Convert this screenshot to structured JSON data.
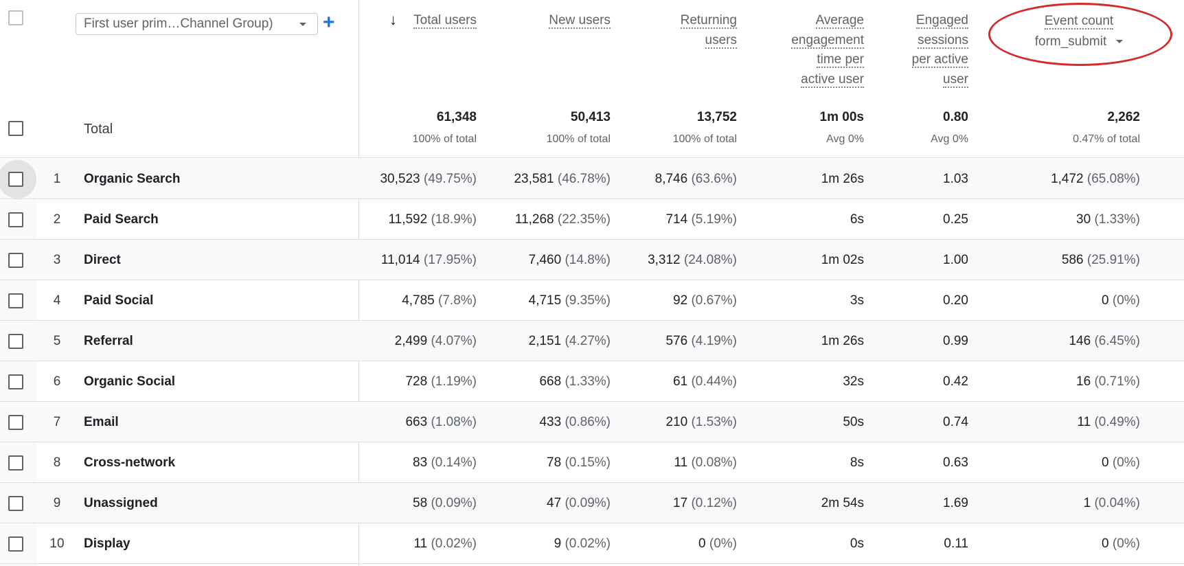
{
  "dimension": {
    "label": "First user prim…Channel Group)"
  },
  "add_dimension_label": "+",
  "sort_arrow": "↓",
  "columns": [
    {
      "id": "total_users",
      "lines": [
        "Total users"
      ]
    },
    {
      "id": "new_users",
      "lines": [
        "New users"
      ]
    },
    {
      "id": "returning_users",
      "lines": [
        "Returning",
        "users"
      ]
    },
    {
      "id": "avg_engagement",
      "lines": [
        "Average",
        "engagement",
        "time per",
        "active user"
      ]
    },
    {
      "id": "engaged_sessions",
      "lines": [
        "Engaged",
        "sessions",
        "per active",
        "user"
      ]
    },
    {
      "id": "event_count",
      "lines": [
        "Event count"
      ],
      "selected_event": "form_submit"
    }
  ],
  "totals": {
    "label": "Total",
    "values": [
      "61,348",
      "50,413",
      "13,752",
      "1m 00s",
      "0.80",
      "2,262"
    ],
    "subs": [
      "100% of total",
      "100% of total",
      "100% of total",
      "Avg 0%",
      "Avg 0%",
      "0.47% of total"
    ]
  },
  "rows": [
    {
      "num": "1",
      "name": "Organic Search",
      "cells": [
        [
          "30,523",
          "(49.75%)"
        ],
        [
          "23,581",
          "(46.78%)"
        ],
        [
          "8,746",
          "(63.6%)"
        ],
        [
          "1m 26s",
          ""
        ],
        [
          "1.03",
          ""
        ],
        [
          "1,472",
          "(65.08%)"
        ]
      ]
    },
    {
      "num": "2",
      "name": "Paid Search",
      "cells": [
        [
          "11,592",
          "(18.9%)"
        ],
        [
          "11,268",
          "(22.35%)"
        ],
        [
          "714",
          "(5.19%)"
        ],
        [
          "6s",
          ""
        ],
        [
          "0.25",
          ""
        ],
        [
          "30",
          "(1.33%)"
        ]
      ]
    },
    {
      "num": "3",
      "name": "Direct",
      "cells": [
        [
          "11,014",
          "(17.95%)"
        ],
        [
          "7,460",
          "(14.8%)"
        ],
        [
          "3,312",
          "(24.08%)"
        ],
        [
          "1m 02s",
          ""
        ],
        [
          "1.00",
          ""
        ],
        [
          "586",
          "(25.91%)"
        ]
      ]
    },
    {
      "num": "4",
      "name": "Paid Social",
      "cells": [
        [
          "4,785",
          "(7.8%)"
        ],
        [
          "4,715",
          "(9.35%)"
        ],
        [
          "92",
          "(0.67%)"
        ],
        [
          "3s",
          ""
        ],
        [
          "0.20",
          ""
        ],
        [
          "0",
          "(0%)"
        ]
      ]
    },
    {
      "num": "5",
      "name": "Referral",
      "cells": [
        [
          "2,499",
          "(4.07%)"
        ],
        [
          "2,151",
          "(4.27%)"
        ],
        [
          "576",
          "(4.19%)"
        ],
        [
          "1m 26s",
          ""
        ],
        [
          "0.99",
          ""
        ],
        [
          "146",
          "(6.45%)"
        ]
      ]
    },
    {
      "num": "6",
      "name": "Organic Social",
      "cells": [
        [
          "728",
          "(1.19%)"
        ],
        [
          "668",
          "(1.33%)"
        ],
        [
          "61",
          "(0.44%)"
        ],
        [
          "32s",
          ""
        ],
        [
          "0.42",
          ""
        ],
        [
          "16",
          "(0.71%)"
        ]
      ]
    },
    {
      "num": "7",
      "name": "Email",
      "cells": [
        [
          "663",
          "(1.08%)"
        ],
        [
          "433",
          "(0.86%)"
        ],
        [
          "210",
          "(1.53%)"
        ],
        [
          "50s",
          ""
        ],
        [
          "0.74",
          ""
        ],
        [
          "11",
          "(0.49%)"
        ]
      ]
    },
    {
      "num": "8",
      "name": "Cross-network",
      "cells": [
        [
          "83",
          "(0.14%)"
        ],
        [
          "78",
          "(0.15%)"
        ],
        [
          "11",
          "(0.08%)"
        ],
        [
          "8s",
          ""
        ],
        [
          "0.63",
          ""
        ],
        [
          "0",
          "(0%)"
        ]
      ]
    },
    {
      "num": "9",
      "name": "Unassigned",
      "cells": [
        [
          "58",
          "(0.09%)"
        ],
        [
          "47",
          "(0.09%)"
        ],
        [
          "17",
          "(0.12%)"
        ],
        [
          "2m 54s",
          ""
        ],
        [
          "1.69",
          ""
        ],
        [
          "1",
          "(0.04%)"
        ]
      ]
    },
    {
      "num": "10",
      "name": "Display",
      "cells": [
        [
          "11",
          "(0.02%)"
        ],
        [
          "9",
          "(0.02%)"
        ],
        [
          "0",
          "(0%)"
        ],
        [
          "0s",
          ""
        ],
        [
          "0.11",
          ""
        ],
        [
          "0",
          "(0%)"
        ]
      ]
    }
  ],
  "colors": {
    "highlight_oval": "#d42a2a",
    "accent": "#1a73e8"
  }
}
